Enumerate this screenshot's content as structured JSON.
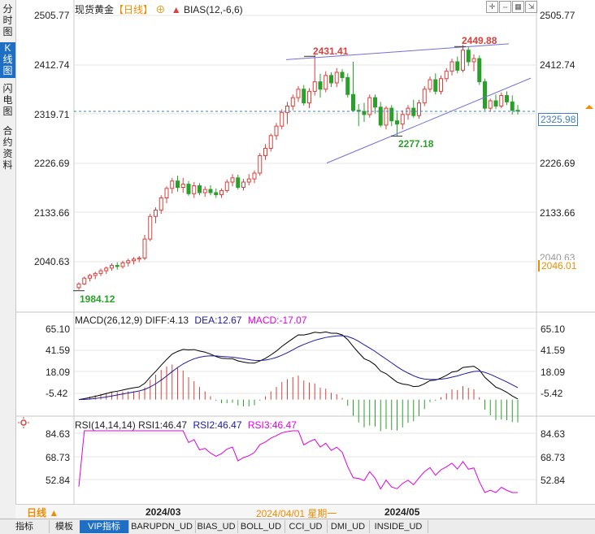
{
  "left_tabs": [
    "分时图",
    "K线图",
    "闪电图",
    "合约资料"
  ],
  "header": {
    "instrument": "现货黄金",
    "period": "【日线】",
    "indicator": "BIAS(12,-6,6)"
  },
  "price_axis": {
    "labels": [
      "2505.77",
      "2412.74",
      "2319.71",
      "2226.69",
      "2133.66",
      "2040.63"
    ]
  },
  "right_axis": {
    "labels": [
      "2505.77",
      "2412.74",
      "2226.69",
      "2133.66"
    ],
    "overlapped_label": "2040.63",
    "current_price": "2325.98",
    "low_price_box": "2046.01"
  },
  "annotations": {
    "high1": "2431.41",
    "high2": "2449.88",
    "low1": "2277.18",
    "low0": "1984.12"
  },
  "macd": {
    "title": "MACD(26,12,9)",
    "diff": "DIFF:4.13",
    "dea": "DEA:12.67",
    "macd": "MACD:-17.07",
    "axis_labels": [
      "65.10",
      "41.59",
      "18.09",
      "-5.42"
    ]
  },
  "rsi": {
    "title": "RSI(14,14,14)",
    "rsi1": "RSI1:46.47",
    "rsi2": "RSI2:46.47",
    "rsi3": "RSI3:46.47",
    "axis_labels": [
      "84.63",
      "68.73",
      "52.84"
    ]
  },
  "xaxis": {
    "period_button": "日线",
    "ticks": [
      "2024/03",
      "2024/05"
    ],
    "cursor_date": "2024/04/01 星期一"
  },
  "bottom_tabs": [
    "指标",
    "模板",
    "VIP指标",
    "BARUPDN_UD",
    "BIAS_UD",
    "BOLL_UD",
    "CCI_UD",
    "DMI_UD",
    "INSIDE_UD"
  ],
  "colors": {
    "up": "#d8413c",
    "down": "#2aa02a",
    "diff": "#000000",
    "dea": "#1a1aa0",
    "rsi": "#e000e0",
    "trend": "#7070d8",
    "accent": "#f08c00",
    "active_tab": "#1e6fc4"
  },
  "chart_data": {
    "type": "candlestick",
    "candles": [
      [
        1990,
        2000,
        1986,
        1997
      ],
      [
        1997,
        2011,
        1995,
        2008
      ],
      [
        2008,
        2016,
        2002,
        2013
      ],
      [
        2013,
        2020,
        2006,
        2017
      ],
      [
        2017,
        2026,
        2012,
        2022
      ],
      [
        2022,
        2030,
        2016,
        2027
      ],
      [
        2027,
        2036,
        2022,
        2032
      ],
      [
        2032,
        2038,
        2024,
        2030
      ],
      [
        2030,
        2041,
        2026,
        2037
      ],
      [
        2037,
        2045,
        2030,
        2041
      ],
      [
        2041,
        2048,
        2034,
        2044
      ],
      [
        2044,
        2050,
        2038,
        2046
      ],
      [
        2046,
        2090,
        2042,
        2082
      ],
      [
        2082,
        2130,
        2078,
        2125
      ],
      [
        2125,
        2142,
        2112,
        2137
      ],
      [
        2137,
        2165,
        2130,
        2160
      ],
      [
        2160,
        2182,
        2150,
        2178
      ],
      [
        2178,
        2198,
        2168,
        2192
      ],
      [
        2192,
        2202,
        2172,
        2180
      ],
      [
        2180,
        2198,
        2170,
        2186
      ],
      [
        2186,
        2192,
        2164,
        2168
      ],
      [
        2168,
        2190,
        2160,
        2183
      ],
      [
        2183,
        2188,
        2165,
        2170
      ],
      [
        2170,
        2182,
        2162,
        2176
      ],
      [
        2176,
        2184,
        2165,
        2170
      ],
      [
        2170,
        2178,
        2160,
        2166
      ],
      [
        2166,
        2178,
        2160,
        2174
      ],
      [
        2174,
        2195,
        2170,
        2190
      ],
      [
        2190,
        2205,
        2182,
        2198
      ],
      [
        2198,
        2204,
        2176,
        2180
      ],
      [
        2180,
        2196,
        2174,
        2190
      ],
      [
        2190,
        2205,
        2184,
        2196
      ],
      [
        2196,
        2212,
        2188,
        2207
      ],
      [
        2207,
        2245,
        2202,
        2240
      ],
      [
        2240,
        2262,
        2232,
        2254
      ],
      [
        2254,
        2282,
        2248,
        2278
      ],
      [
        2278,
        2302,
        2270,
        2296
      ],
      [
        2296,
        2328,
        2290,
        2322
      ],
      [
        2322,
        2342,
        2300,
        2334
      ],
      [
        2334,
        2356,
        2326,
        2350
      ],
      [
        2350,
        2372,
        2342,
        2366
      ],
      [
        2366,
        2374,
        2335,
        2340
      ],
      [
        2340,
        2368,
        2330,
        2362
      ],
      [
        2362,
        2431,
        2354,
        2380
      ],
      [
        2380,
        2395,
        2350,
        2366
      ],
      [
        2366,
        2400,
        2360,
        2392
      ],
      [
        2392,
        2398,
        2370,
        2378
      ],
      [
        2378,
        2406,
        2370,
        2398
      ],
      [
        2398,
        2404,
        2380,
        2388
      ],
      [
        2388,
        2396,
        2350,
        2356
      ],
      [
        2356,
        2418,
        2324,
        2326
      ],
      [
        2326,
        2338,
        2296,
        2324
      ],
      [
        2324,
        2340,
        2304,
        2318
      ],
      [
        2318,
        2356,
        2312,
        2350
      ],
      [
        2350,
        2356,
        2320,
        2332
      ],
      [
        2332,
        2342,
        2294,
        2298
      ],
      [
        2298,
        2334,
        2290,
        2330
      ],
      [
        2330,
        2336,
        2296,
        2306
      ],
      [
        2306,
        2322,
        2277,
        2300
      ],
      [
        2300,
        2326,
        2290,
        2318
      ],
      [
        2318,
        2336,
        2308,
        2330
      ],
      [
        2330,
        2346,
        2312,
        2316
      ],
      [
        2316,
        2346,
        2310,
        2340
      ],
      [
        2340,
        2372,
        2334,
        2366
      ],
      [
        2366,
        2390,
        2360,
        2384
      ],
      [
        2384,
        2396,
        2356,
        2362
      ],
      [
        2362,
        2392,
        2356,
        2386
      ],
      [
        2386,
        2406,
        2380,
        2400
      ],
      [
        2400,
        2424,
        2392,
        2418
      ],
      [
        2418,
        2428,
        2396,
        2402
      ],
      [
        2402,
        2449.88,
        2398,
        2440
      ],
      [
        2440,
        2446,
        2410,
        2418
      ],
      [
        2418,
        2432,
        2400,
        2424
      ],
      [
        2424,
        2430,
        2374,
        2380
      ],
      [
        2380,
        2386,
        2326,
        2330
      ],
      [
        2330,
        2348,
        2324,
        2344
      ],
      [
        2344,
        2356,
        2328,
        2334
      ],
      [
        2334,
        2360,
        2330,
        2354
      ],
      [
        2354,
        2362,
        2336,
        2342
      ],
      [
        2342,
        2354,
        2318,
        2326
      ],
      [
        2326,
        2336,
        2318,
        2325.98
      ]
    ],
    "ylim": [
      1960,
      2520
    ],
    "trendlines": {
      "resistance": [
        2431.41,
        2449.88
      ],
      "support": [
        2277.18,
        2380
      ]
    },
    "macd_ylim": [
      -14,
      70
    ],
    "rsi_ylim": [
      46,
      88
    ]
  }
}
